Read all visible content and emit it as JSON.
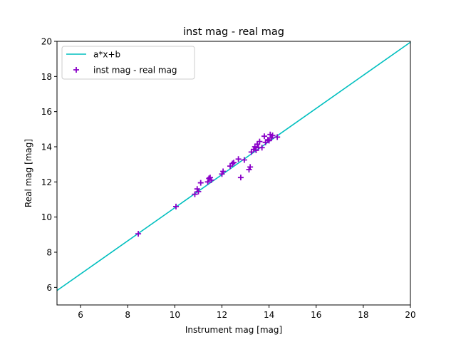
{
  "chart_data": {
    "type": "scatter",
    "title": "inst mag - real mag",
    "xlabel": "Instrument mag [mag]",
    "ylabel": "Real mag [mag]",
    "xlim": [
      5,
      20
    ],
    "ylim": [
      5,
      20
    ],
    "xticks": [
      6,
      8,
      10,
      12,
      14,
      16,
      18,
      20
    ],
    "yticks": [
      6,
      8,
      10,
      12,
      14,
      16,
      18,
      20
    ],
    "grid": false,
    "legend_position": "top-left",
    "series": [
      {
        "name": "a*x+b",
        "kind": "line",
        "color": "#00bfbf",
        "x": [
          5,
          20
        ],
        "y": [
          5.82,
          19.95
        ]
      },
      {
        "name": "inst mag - real mag",
        "kind": "scatter",
        "marker": "+",
        "color": "#8a00c8",
        "x": [
          8.45,
          10.05,
          10.85,
          10.95,
          11.0,
          11.1,
          11.4,
          11.45,
          11.5,
          11.55,
          12.0,
          12.05,
          12.35,
          12.45,
          12.5,
          12.7,
          12.8,
          12.95,
          13.15,
          13.2,
          13.25,
          13.35,
          13.4,
          13.45,
          13.5,
          13.55,
          13.6,
          13.7,
          13.8,
          13.85,
          13.95,
          14.0,
          14.05,
          14.1,
          14.15,
          14.35
        ],
        "y": [
          9.05,
          10.6,
          11.3,
          11.6,
          11.45,
          11.95,
          12.0,
          12.2,
          12.25,
          12.1,
          12.45,
          12.6,
          12.9,
          13.05,
          13.1,
          13.3,
          12.25,
          13.25,
          12.7,
          12.85,
          13.7,
          13.85,
          14.0,
          13.8,
          14.15,
          13.95,
          14.3,
          13.95,
          14.6,
          14.25,
          14.4,
          14.35,
          14.7,
          14.5,
          14.65,
          14.55
        ]
      }
    ]
  }
}
